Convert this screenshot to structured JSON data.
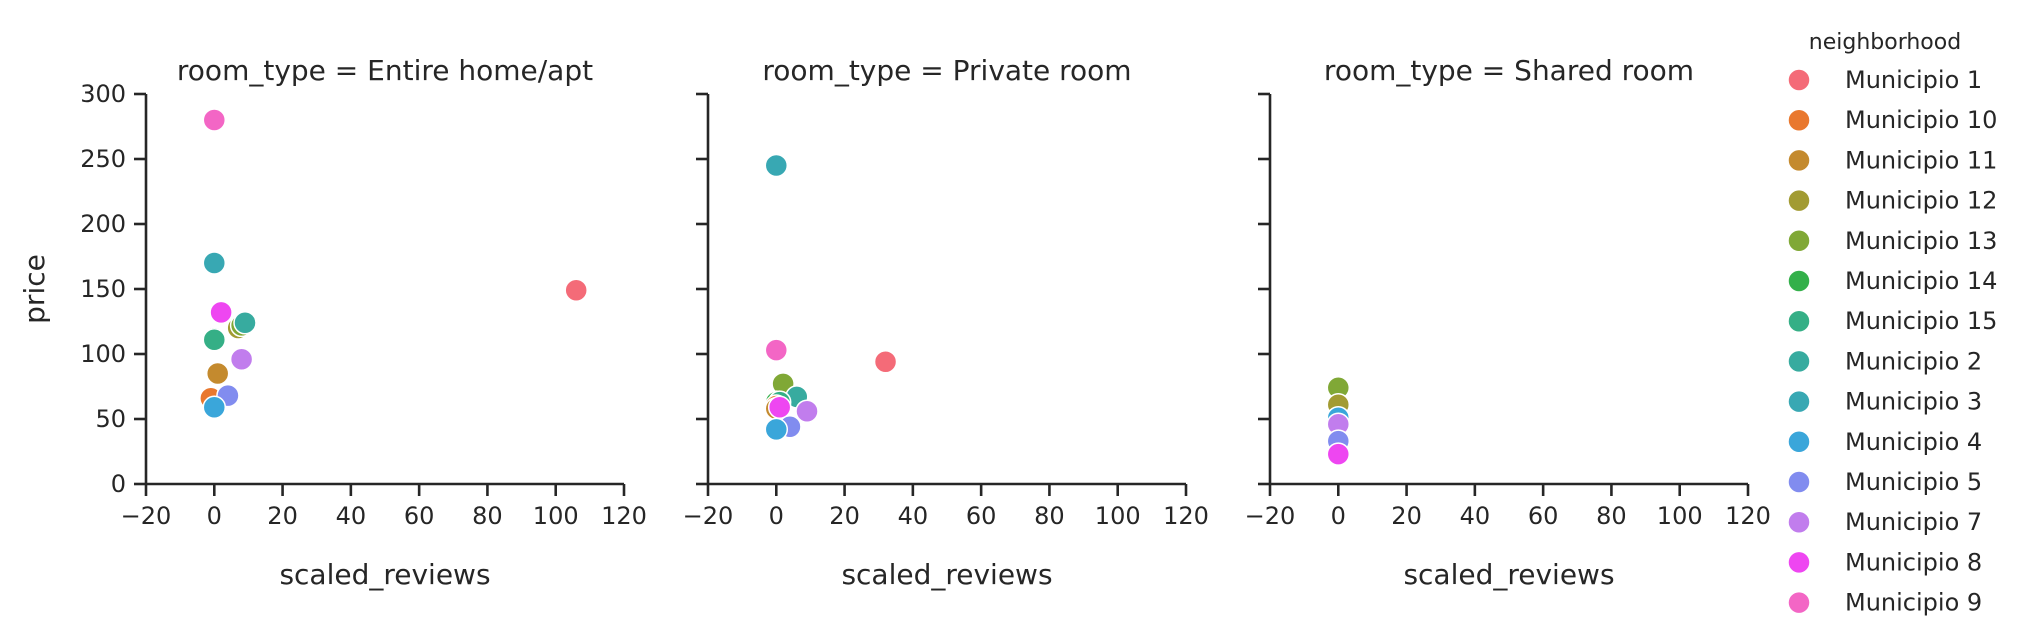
{
  "chart_data": {
    "type": "scatter",
    "xlabel": "scaled_reviews",
    "ylabel": "price",
    "xlim": [
      -20,
      120
    ],
    "ylim": [
      0,
      300
    ],
    "xticks": [
      -20,
      0,
      20,
      40,
      60,
      80,
      100,
      120
    ],
    "yticks": [
      0,
      50,
      100,
      150,
      200,
      250,
      300
    ],
    "facet_titles": [
      "room_type = Entire home/apt",
      "room_type = Private room",
      "room_type = Shared room"
    ],
    "legend": {
      "title": "neighborhood",
      "placement": "right",
      "entries": [
        {
          "name": "Municipio 1",
          "color": "#f46b78"
        },
        {
          "name": "Municipio 10",
          "color": "#e9782e"
        },
        {
          "name": "Municipio 11",
          "color": "#c48a2e"
        },
        {
          "name": "Municipio 12",
          "color": "#a29b32"
        },
        {
          "name": "Municipio 13",
          "color": "#80a836"
        },
        {
          "name": "Municipio 14",
          "color": "#33b04a"
        },
        {
          "name": "Municipio 15",
          "color": "#35af86"
        },
        {
          "name": "Municipio 2",
          "color": "#37ab9f"
        },
        {
          "name": "Municipio 3",
          "color": "#38a8b3"
        },
        {
          "name": "Municipio 4",
          "color": "#3aa6da"
        },
        {
          "name": "Municipio 5",
          "color": "#818cef"
        },
        {
          "name": "Municipio 7",
          "color": "#c17ded"
        },
        {
          "name": "Municipio 8",
          "color": "#ee46f1"
        },
        {
          "name": "Municipio 9",
          "color": "#f366c5"
        }
      ]
    },
    "panels": [
      {
        "title": "room_type = Entire home/apt",
        "points": [
          {
            "series": "Municipio 9",
            "x": 0,
            "y": 280
          },
          {
            "series": "Municipio 3",
            "x": 0,
            "y": 170
          },
          {
            "series": "Municipio 1",
            "x": 106,
            "y": 149
          },
          {
            "series": "Municipio 8",
            "x": 2,
            "y": 132
          },
          {
            "series": "Municipio 12",
            "x": 7,
            "y": 120
          },
          {
            "series": "Municipio 13",
            "x": 8,
            "y": 122
          },
          {
            "series": "Municipio 2",
            "x": 9,
            "y": 124
          },
          {
            "series": "Municipio 14",
            "x": 0,
            "y": 112
          },
          {
            "series": "Municipio 15",
            "x": 0,
            "y": 111
          },
          {
            "series": "Municipio 7",
            "x": 8,
            "y": 96
          },
          {
            "series": "Municipio 11",
            "x": 1,
            "y": 85
          },
          {
            "series": "Municipio 10",
            "x": -1,
            "y": 66
          },
          {
            "series": "Municipio 5",
            "x": 4,
            "y": 68
          },
          {
            "series": "Municipio 4",
            "x": 0,
            "y": 59
          }
        ]
      },
      {
        "title": "room_type = Private room",
        "points": [
          {
            "series": "Municipio 3",
            "x": 0,
            "y": 245
          },
          {
            "series": "Municipio 9",
            "x": 0,
            "y": 103
          },
          {
            "series": "Municipio 1",
            "x": 32,
            "y": 94
          },
          {
            "series": "Municipio 13",
            "x": 2,
            "y": 77
          },
          {
            "series": "Municipio 2",
            "x": 6,
            "y": 67
          },
          {
            "series": "Municipio 14",
            "x": 0,
            "y": 63
          },
          {
            "series": "Municipio 15",
            "x": 1,
            "y": 63
          },
          {
            "series": "Municipio 10",
            "x": 0,
            "y": 60
          },
          {
            "series": "Municipio 11",
            "x": 0,
            "y": 58
          },
          {
            "series": "Municipio 8",
            "x": 1,
            "y": 59
          },
          {
            "series": "Municipio 7",
            "x": 9,
            "y": 56
          },
          {
            "series": "Municipio 5",
            "x": 4,
            "y": 44
          },
          {
            "series": "Municipio 4",
            "x": 0,
            "y": 42
          }
        ]
      },
      {
        "title": "room_type = Shared room",
        "points": [
          {
            "series": "Municipio 13",
            "x": 0,
            "y": 74
          },
          {
            "series": "Municipio 12",
            "x": 0,
            "y": 61
          },
          {
            "series": "Municipio 4",
            "x": 0,
            "y": 51
          },
          {
            "series": "Municipio 7",
            "x": 0,
            "y": 46
          },
          {
            "series": "Municipio 5",
            "x": 0,
            "y": 33
          },
          {
            "series": "Municipio 8",
            "x": 0,
            "y": 23
          }
        ]
      }
    ]
  }
}
